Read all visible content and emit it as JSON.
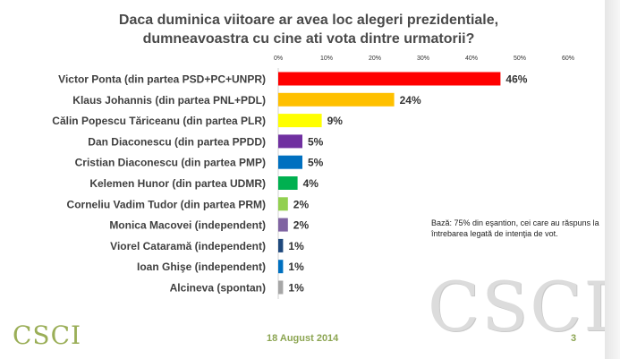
{
  "chart_data": {
    "type": "bar",
    "orientation": "horizontal",
    "title": "Daca duminica viitoare ar avea loc alegeri prezidentiale, dumneavoastra cu cine ati vota dintre urmatorii?",
    "title_lines": [
      "Daca duminica viitoare ar avea loc alegeri prezidentiale,",
      "dumneavoastra cu cine ati vota dintre urmatorii?"
    ],
    "categories": [
      "Victor Ponta (din partea PSD+PC+UNPR)",
      "Klaus Johannis (din partea PNL+PDL)",
      "Călin Popescu Tăriceanu (din partea PLR)",
      "Dan Diaconescu (din partea PPDD)",
      "Cristian Diaconescu (din partea PMP)",
      "Kelemen Hunor (din partea UDMR)",
      "Corneliu Vadim Tudor (din partea PRM)",
      "Monica Macovei (independent)",
      "Viorel Cataramă (independent)",
      "Ioan Ghişe (independent)",
      "Alcineva (spontan)"
    ],
    "values": [
      46,
      24,
      9,
      5,
      5,
      4,
      2,
      2,
      1,
      1,
      1
    ],
    "value_labels": [
      "46%",
      "24%",
      "9%",
      "5%",
      "5%",
      "4%",
      "2%",
      "2%",
      "1%",
      "1%",
      "1%"
    ],
    "colors": [
      "#ff0000",
      "#ffc000",
      "#ffff00",
      "#7030a0",
      "#0070c0",
      "#00b050",
      "#92d050",
      "#8064a2",
      "#1f497d",
      "#0070c0",
      "#a6a6a6"
    ],
    "xlim": [
      0,
      60
    ],
    "xticks": [
      0,
      10,
      20,
      30,
      40,
      50,
      60
    ],
    "xtick_labels": [
      "0%",
      "10%",
      "20%",
      "30%",
      "40%",
      "50%",
      "60%"
    ],
    "xlabel": "",
    "ylabel": "",
    "grid": false
  },
  "note": "Bază: 75% din eşantion, cei care au răspuns la întrebarea legată de intenţia de vot.",
  "logo_text": "CSCI",
  "date": "18 August 2014",
  "page_number": "3"
}
